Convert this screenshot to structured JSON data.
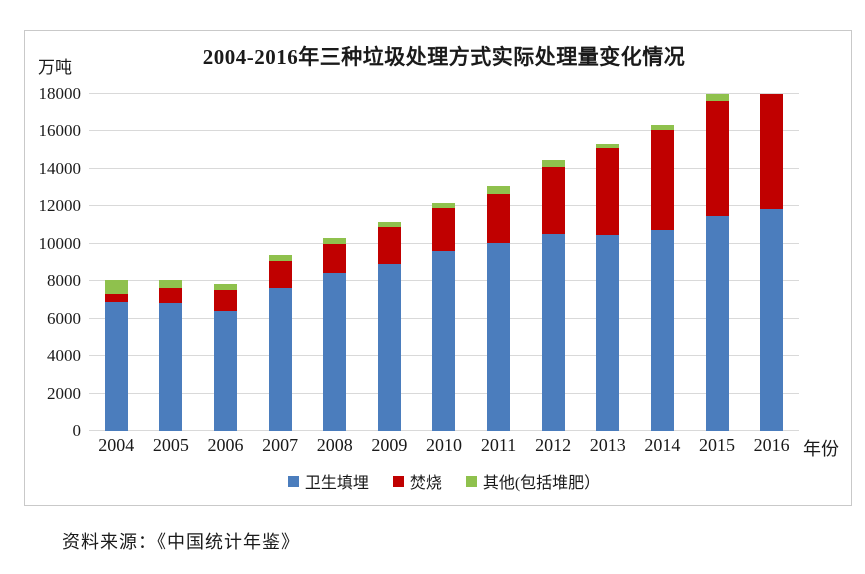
{
  "page": {
    "background_color": "#ffffff",
    "border_color": "#c9c9c9",
    "gridline_color": "#d9d9d9"
  },
  "chart": {
    "title": "2004-2016年三种垃圾处理方式实际处理量变化情况",
    "y_axis_unit_label": "万吨",
    "x_axis_label": "年份",
    "source_note": "资料来源：《中国统计年鉴》"
  },
  "chart_data": {
    "type": "bar",
    "stacked": true,
    "title": "2004-2016年三种垃圾处理方式实际处理量变化情况",
    "xlabel": "年份",
    "ylabel": "万吨",
    "ylim": [
      0,
      18000
    ],
    "ytick_step": 2000,
    "yticks": [
      0,
      2000,
      4000,
      6000,
      8000,
      10000,
      12000,
      14000,
      16000,
      18000
    ],
    "grid": true,
    "legend_position": "bottom",
    "categories": [
      "2004",
      "2005",
      "2006",
      "2007",
      "2008",
      "2009",
      "2010",
      "2011",
      "2012",
      "2013",
      "2014",
      "2015",
      "2016"
    ],
    "series": [
      {
        "name": "卫生填埋",
        "color": "#4b7dbd",
        "values": [
          6889,
          6858,
          6408,
          7633,
          8424,
          8899,
          9598,
          10064,
          10513,
          10493,
          10744,
          11483,
          11866
        ]
      },
      {
        "name": "焚烧",
        "color": "#c00000",
        "values": [
          449,
          791,
          1138,
          1435,
          1570,
          2022,
          2317,
          2599,
          3584,
          4634,
          5330,
          6176,
          6134
        ]
      },
      {
        "name": "其他(包括堆肥）",
        "color": "#8fc14d",
        "values": [
          719,
          403,
          293,
          327,
          313,
          261,
          255,
          439,
          376,
          204,
          256,
          354,
          0
        ]
      }
    ]
  }
}
